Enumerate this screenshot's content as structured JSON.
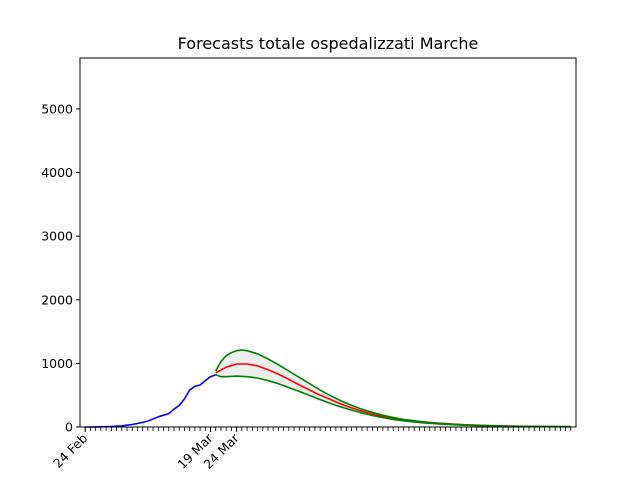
{
  "chart_data": {
    "type": "line",
    "title": "Forecasts totale ospedalizzati Marche",
    "xlabel": "",
    "ylabel": "",
    "ylim": [
      0,
      5800
    ],
    "yticks": [
      0,
      1000,
      2000,
      3000,
      4000,
      5000
    ],
    "xlim": [
      -1,
      94
    ],
    "xticks": [
      {
        "day": 0,
        "label": "24 Feb"
      },
      {
        "day": 24,
        "label": "19 Mar"
      },
      {
        "day": 29,
        "label": "24 Mar"
      }
    ],
    "minor_tick_days_range": [
      0,
      93
    ],
    "grid": false,
    "legend": false,
    "series": [
      {
        "role": "observed",
        "color": "#0000ff",
        "points": [
          [
            0,
            0
          ],
          [
            1,
            0
          ],
          [
            2,
            2
          ],
          [
            3,
            3
          ],
          [
            4,
            5
          ],
          [
            5,
            8
          ],
          [
            6,
            12
          ],
          [
            7,
            18
          ],
          [
            8,
            28
          ],
          [
            9,
            40
          ],
          [
            10,
            55
          ],
          [
            11,
            72
          ],
          [
            12,
            95
          ],
          [
            13,
            125
          ],
          [
            14,
            160
          ],
          [
            15,
            185
          ],
          [
            16,
            210
          ],
          [
            17,
            280
          ],
          [
            18,
            340
          ],
          [
            19,
            440
          ],
          [
            20,
            580
          ],
          [
            21,
            640
          ],
          [
            22,
            660
          ],
          [
            23,
            730
          ],
          [
            24,
            790
          ],
          [
            25,
            820
          ]
        ]
      },
      {
        "role": "forecast",
        "color": "#ff0000",
        "points": [
          [
            25,
            850
          ],
          [
            27,
            940
          ],
          [
            29,
            990
          ],
          [
            31,
            990
          ],
          [
            33,
            960
          ],
          [
            35,
            900
          ],
          [
            37,
            830
          ],
          [
            39,
            750
          ],
          [
            41,
            660
          ],
          [
            43,
            580
          ],
          [
            45,
            500
          ],
          [
            47,
            430
          ],
          [
            49,
            360
          ],
          [
            51,
            300
          ],
          [
            53,
            250
          ],
          [
            55,
            205
          ],
          [
            57,
            170
          ],
          [
            59,
            140
          ],
          [
            61,
            115
          ],
          [
            63,
            95
          ],
          [
            65,
            78
          ],
          [
            67,
            64
          ],
          [
            69,
            53
          ],
          [
            71,
            43
          ],
          [
            73,
            35
          ],
          [
            75,
            29
          ],
          [
            77,
            23
          ],
          [
            79,
            19
          ],
          [
            81,
            15
          ],
          [
            83,
            12
          ],
          [
            85,
            10
          ],
          [
            87,
            8
          ],
          [
            89,
            6
          ],
          [
            91,
            5
          ],
          [
            93,
            4
          ]
        ]
      },
      {
        "role": "upper_bound",
        "color": "#008000",
        "points": [
          [
            25,
            880
          ],
          [
            26,
            1030
          ],
          [
            27,
            1120
          ],
          [
            28,
            1170
          ],
          [
            29,
            1200
          ],
          [
            30,
            1210
          ],
          [
            31,
            1200
          ],
          [
            33,
            1150
          ],
          [
            35,
            1070
          ],
          [
            37,
            980
          ],
          [
            39,
            880
          ],
          [
            41,
            780
          ],
          [
            43,
            680
          ],
          [
            45,
            580
          ],
          [
            47,
            490
          ],
          [
            49,
            410
          ],
          [
            51,
            340
          ],
          [
            53,
            280
          ],
          [
            55,
            230
          ],
          [
            57,
            185
          ],
          [
            59,
            150
          ],
          [
            61,
            120
          ],
          [
            63,
            97
          ],
          [
            65,
            78
          ],
          [
            67,
            63
          ],
          [
            69,
            50
          ],
          [
            71,
            40
          ],
          [
            73,
            32
          ],
          [
            75,
            26
          ],
          [
            77,
            21
          ],
          [
            79,
            17
          ],
          [
            81,
            13
          ],
          [
            83,
            11
          ],
          [
            85,
            9
          ],
          [
            87,
            7
          ],
          [
            89,
            6
          ],
          [
            91,
            5
          ],
          [
            93,
            4
          ]
        ]
      },
      {
        "role": "lower_bound",
        "color": "#008000",
        "points": [
          [
            25,
            820
          ],
          [
            26,
            790
          ],
          [
            27,
            790
          ],
          [
            29,
            800
          ],
          [
            31,
            790
          ],
          [
            33,
            770
          ],
          [
            35,
            730
          ],
          [
            37,
            680
          ],
          [
            39,
            620
          ],
          [
            41,
            560
          ],
          [
            43,
            495
          ],
          [
            45,
            430
          ],
          [
            47,
            370
          ],
          [
            49,
            315
          ],
          [
            51,
            265
          ],
          [
            53,
            220
          ],
          [
            55,
            180
          ],
          [
            57,
            148
          ],
          [
            59,
            120
          ],
          [
            61,
            98
          ],
          [
            63,
            80
          ],
          [
            65,
            65
          ],
          [
            67,
            52
          ],
          [
            69,
            42
          ],
          [
            71,
            34
          ],
          [
            73,
            27
          ],
          [
            75,
            22
          ],
          [
            77,
            18
          ],
          [
            79,
            14
          ],
          [
            81,
            11
          ],
          [
            83,
            9
          ],
          [
            85,
            7
          ],
          [
            87,
            6
          ],
          [
            89,
            5
          ],
          [
            91,
            4
          ],
          [
            93,
            3
          ]
        ]
      }
    ],
    "band_fill": "#eeeeee"
  }
}
